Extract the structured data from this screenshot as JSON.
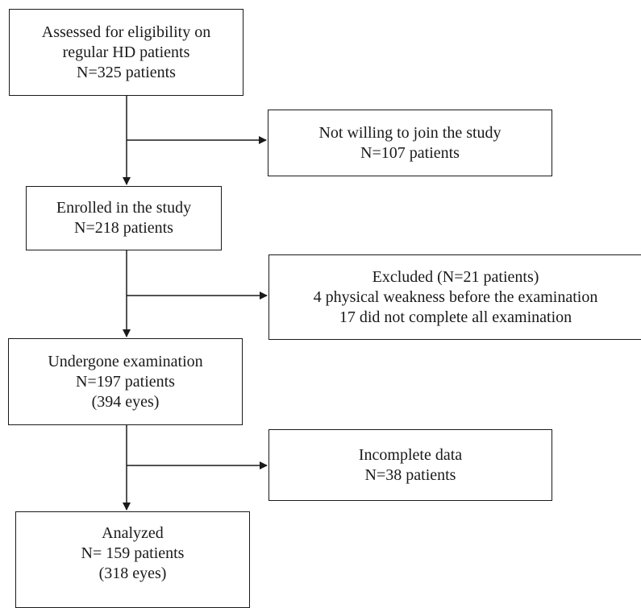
{
  "flowchart": {
    "eligibility": {
      "line1": "Assessed for eligibility  on",
      "line2": "regular HD patients",
      "line3": "N=325 patients"
    },
    "not_willing": {
      "line1": "Not willing to join the study",
      "line2": "N=107 patients"
    },
    "enrolled": {
      "line1": "Enrolled in the study",
      "line2": "N=218 patients"
    },
    "excluded": {
      "line1": "Excluded (N=21 patients)",
      "line2": "4 physical weakness before the examination",
      "line3": "17 did not complete all examination"
    },
    "examined": {
      "line1": "Undergone examination",
      "line2": "N=197 patients",
      "line3": "(394 eyes)"
    },
    "incomplete": {
      "line1": "Incomplete data",
      "line2": "N=38 patients"
    },
    "analyzed": {
      "line1": "Analyzed",
      "line2": "N= 159 patients",
      "line3": "(318 eyes)"
    }
  },
  "colors": {
    "line": "#1a1a1a",
    "background": "#ffffff"
  }
}
